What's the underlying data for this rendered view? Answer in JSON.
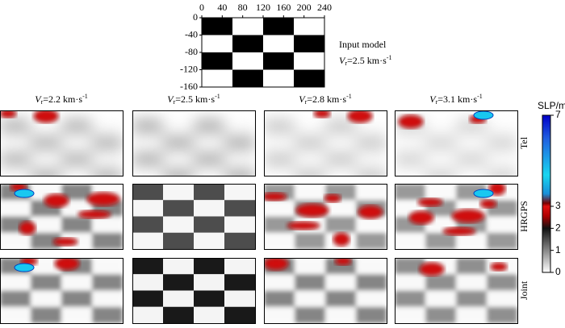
{
  "input_model": {
    "title": "Input model",
    "label": {
      "symbol": "V",
      "subscript": "r",
      "text": "=2.5 km·s",
      "superscript": "-1"
    },
    "xlim": [
      0,
      240
    ],
    "xticks": [
      0,
      40,
      80,
      120,
      160,
      200,
      240
    ],
    "ylim": [
      0,
      -160
    ],
    "yticks": [
      0,
      -40,
      -80,
      -120,
      -160
    ]
  },
  "columns": [
    {
      "symbol": "V",
      "subscript": "r",
      "text": "=2.2 km·s",
      "superscript": "-1"
    },
    {
      "symbol": "V",
      "subscript": "r",
      "text": "=2.5 km·s",
      "superscript": "-1"
    },
    {
      "symbol": "V",
      "subscript": "r",
      "text": "=2.8 km·s",
      "superscript": "-1"
    },
    {
      "symbol": "V",
      "subscript": "r",
      "text": "=3.1 km·s",
      "superscript": "-1"
    }
  ],
  "rows": [
    "Tel",
    "HRGPS",
    "Joint"
  ],
  "colorbar": {
    "label": "SLP/m",
    "ticks": [
      0,
      1,
      2,
      3,
      7
    ]
  }
}
